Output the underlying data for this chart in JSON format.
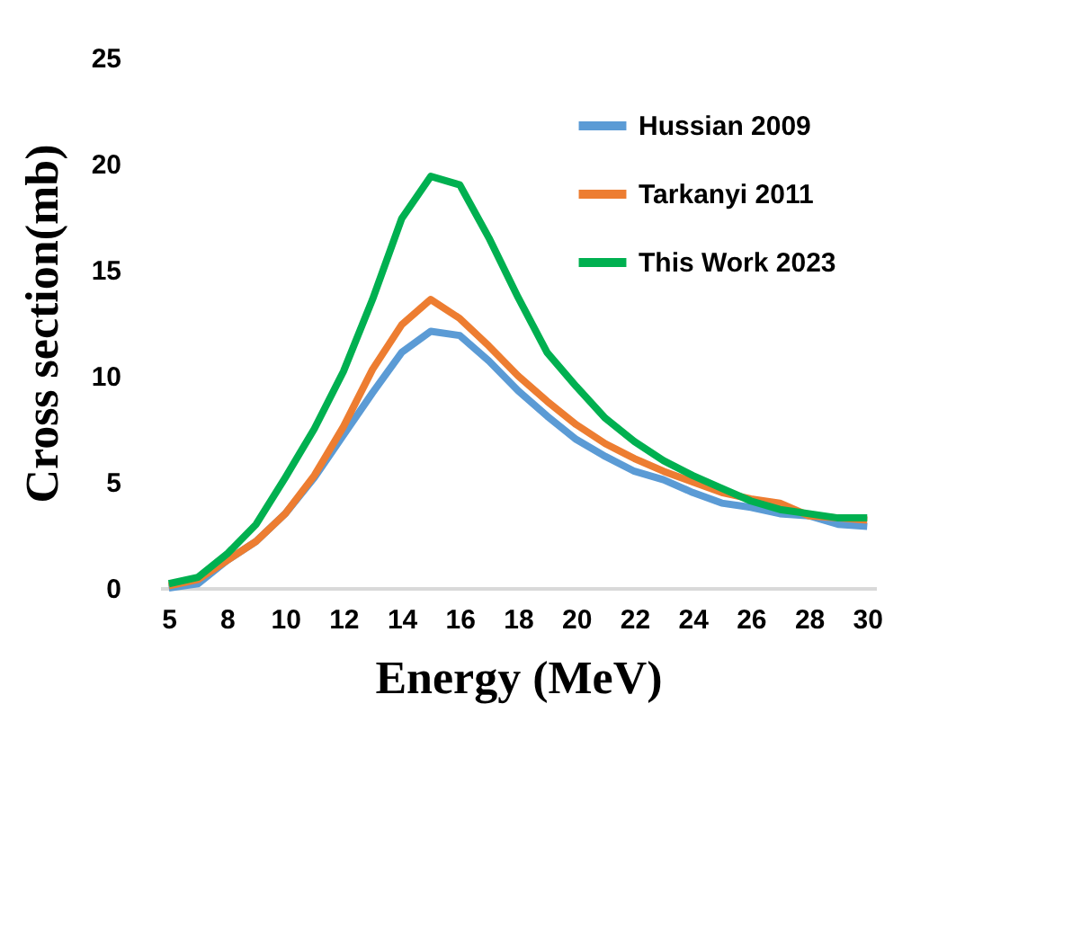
{
  "chart_data": {
    "type": "line",
    "xlabel": "Energy (MeV)",
    "ylabel": "Cross section(mb)",
    "categories": [
      "5",
      null,
      "8",
      null,
      "10",
      null,
      "12",
      null,
      "14",
      null,
      "16",
      null,
      "18",
      null,
      "20",
      null,
      "22",
      null,
      "24",
      null,
      "26",
      null,
      "28",
      null,
      "30"
    ],
    "series": [
      {
        "name": "Hussian 2009",
        "color": "#5b9bd5",
        "values": [
          0.0,
          0.2,
          1.3,
          2.2,
          3.5,
          5.2,
          7.2,
          9.2,
          11.1,
          12.1,
          11.9,
          10.7,
          9.3,
          8.1,
          7.0,
          6.2,
          5.5,
          5.1,
          4.5,
          4.0,
          3.8,
          3.5,
          3.4,
          3.0,
          2.9
        ]
      },
      {
        "name": "Tarkanyi 2011",
        "color": "#ed7d31",
        "values": [
          0.1,
          0.4,
          1.3,
          2.2,
          3.5,
          5.3,
          7.6,
          10.3,
          12.4,
          13.6,
          12.7,
          11.4,
          10.0,
          8.8,
          7.7,
          6.8,
          6.1,
          5.5,
          5.0,
          4.5,
          4.2,
          4.0,
          3.4,
          3.3,
          3.2
        ]
      },
      {
        "name": "This Work 2023",
        "color": "#00b050",
        "values": [
          0.2,
          0.5,
          1.6,
          3.0,
          5.2,
          7.5,
          10.2,
          13.6,
          17.4,
          19.4,
          19.0,
          16.5,
          13.7,
          11.1,
          9.5,
          8.0,
          6.9,
          6.0,
          5.3,
          4.7,
          4.1,
          3.7,
          3.5,
          3.3,
          3.3
        ]
      }
    ],
    "ylim": [
      0,
      25
    ],
    "yticks": [
      0,
      5,
      10,
      15,
      20,
      25
    ],
    "grid": false,
    "legend": "top right",
    "marker": "none",
    "line_style": "solid"
  }
}
